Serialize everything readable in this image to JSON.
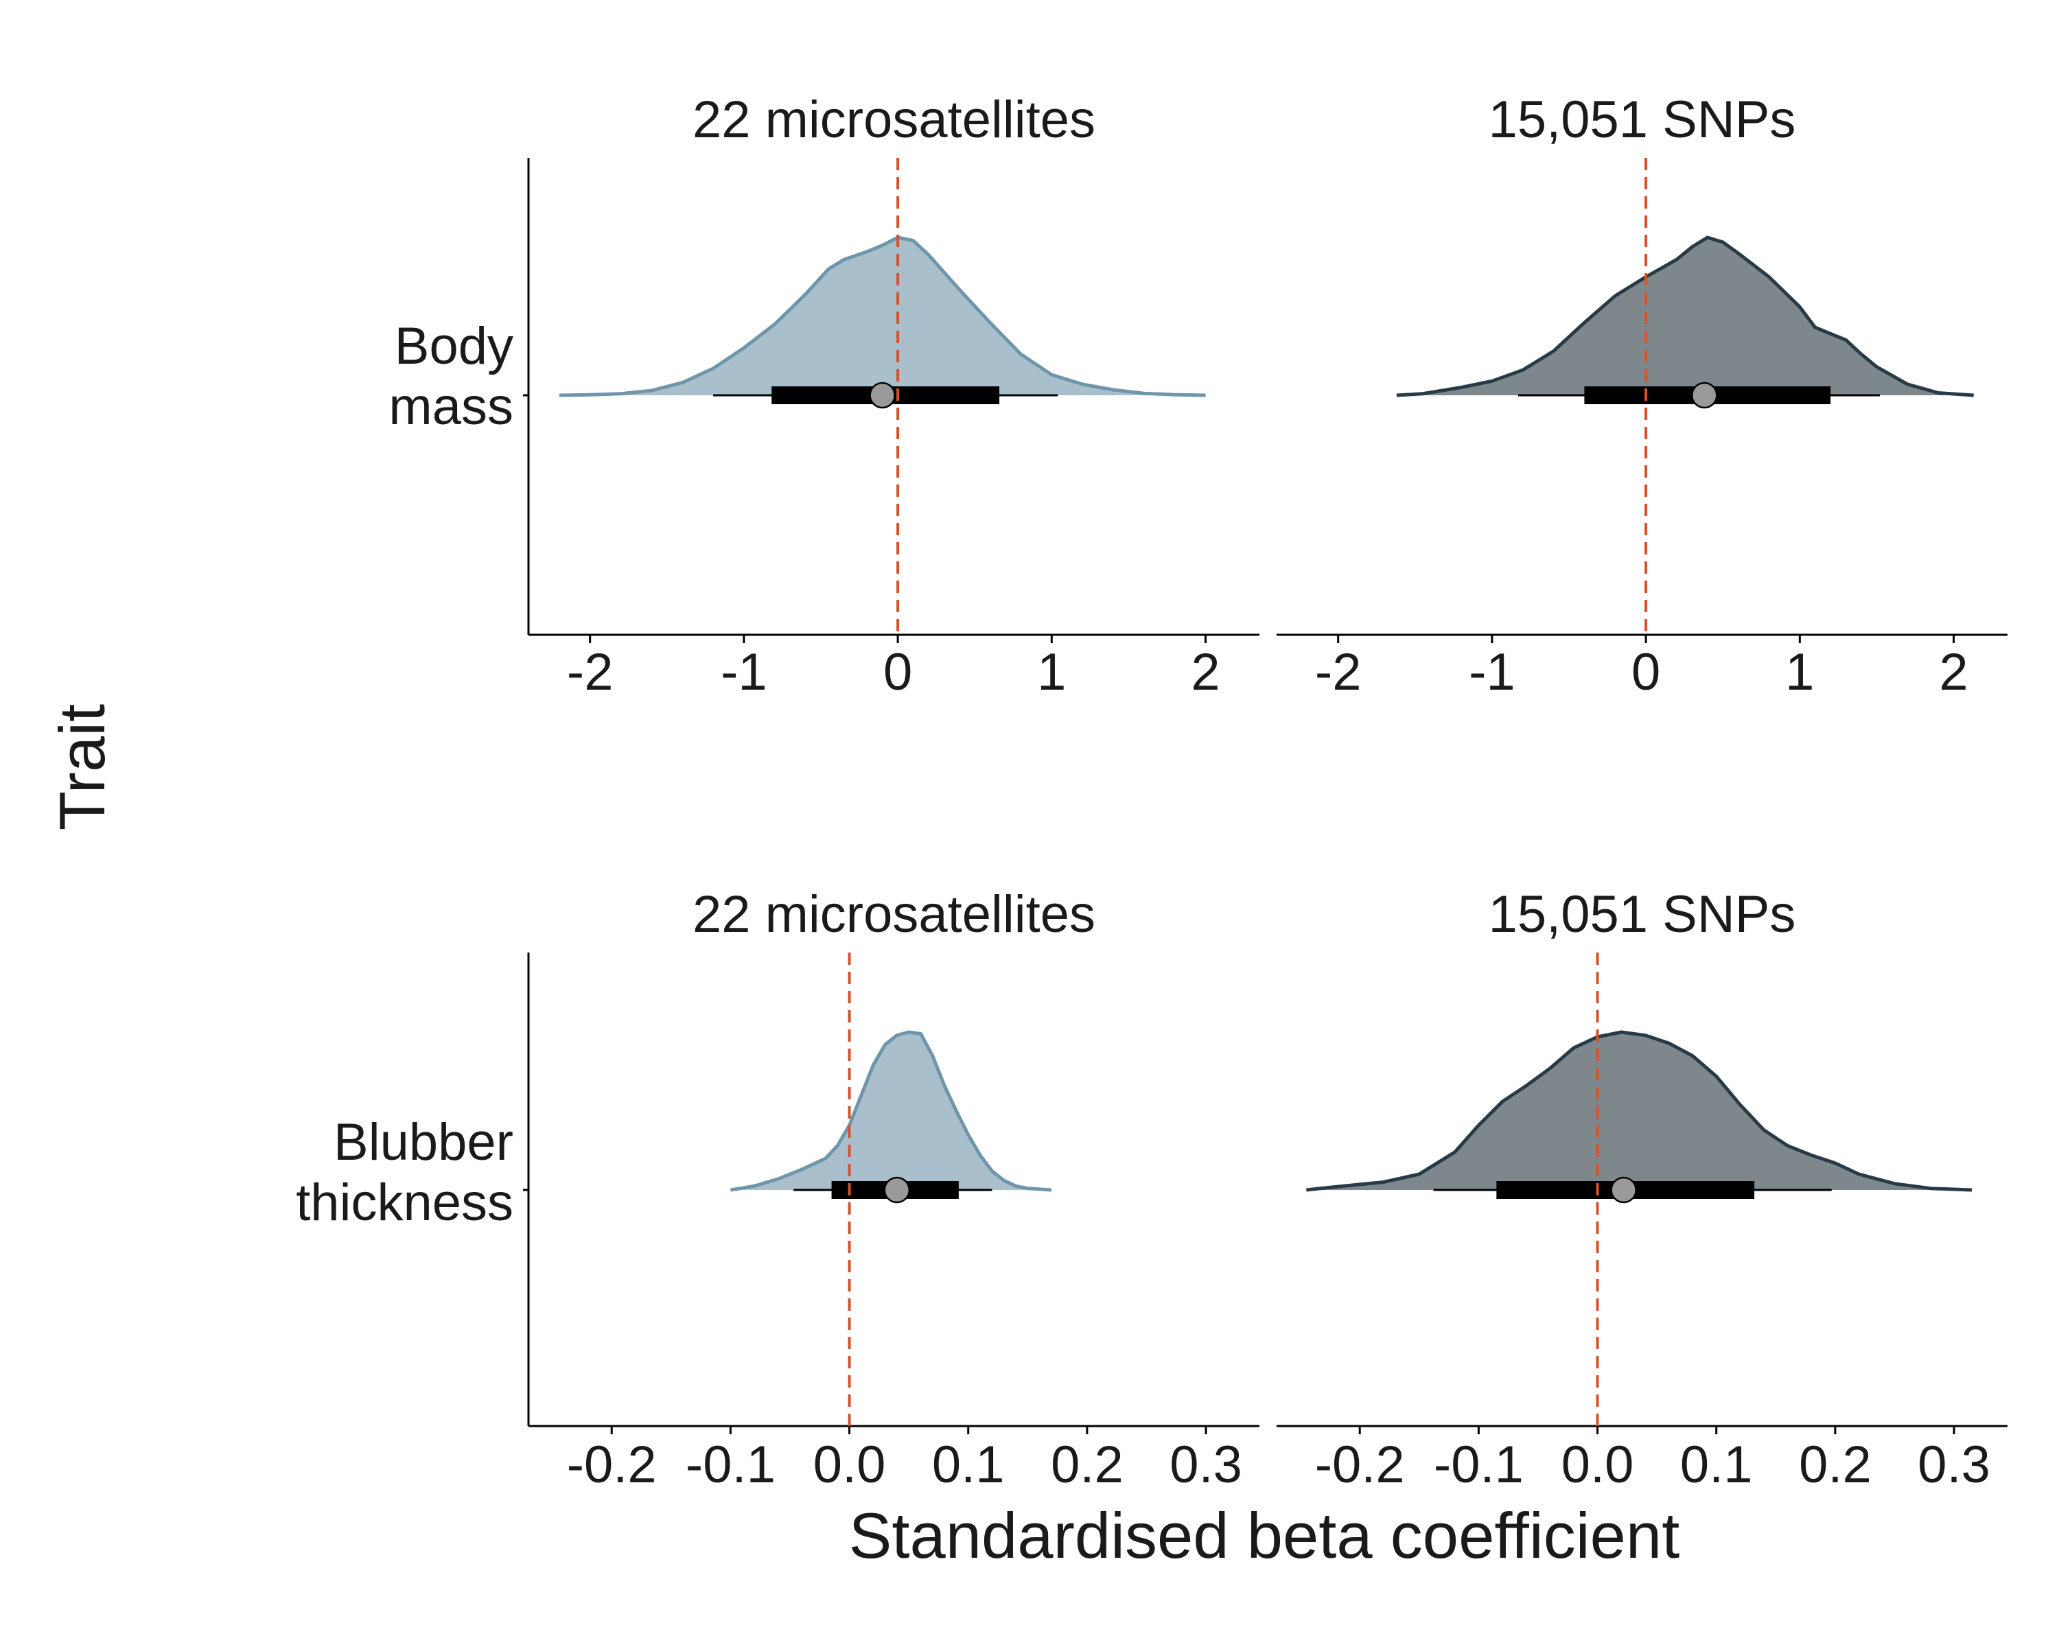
{
  "chart_data": {
    "type": "area",
    "description_type": "posterior density (half-eye) plots with median and credible intervals",
    "axis_title_x": "Standardised beta coefficient",
    "axis_title_y": "Trait",
    "reference_line": {
      "x": 0,
      "color": "#d2542a",
      "style": "dashed"
    },
    "colors": {
      "microsatellites_fill": "#a9c0cc",
      "microsatellites_line": "#6f95aa",
      "snps_fill": "#7e888c",
      "snps_line": "#283a46",
      "interval": "#000000",
      "median_point": "#9a9a9a"
    },
    "rows": [
      {
        "trait": "Body\nmass",
        "trait_lines": [
          "Body",
          "mass"
        ],
        "xlim": [
          -2.4,
          2.35
        ],
        "xticks": [
          -2,
          -1,
          0,
          1,
          2
        ],
        "xtick_labels": [
          "-2",
          "-1",
          "0",
          "1",
          "2"
        ],
        "panels": [
          {
            "name": "22 microsatellites",
            "style": "microsatellites",
            "median": -0.1,
            "ci_66": [
              -0.82,
              0.66
            ],
            "ci_95": [
              -1.2,
              1.04
            ],
            "density": [
              [
                -2.2,
                0
              ],
              [
                -2.0,
                0.003
              ],
              [
                -1.8,
                0.01
              ],
              [
                -1.6,
                0.03
              ],
              [
                -1.4,
                0.08
              ],
              [
                -1.2,
                0.17
              ],
              [
                -1.0,
                0.3
              ],
              [
                -0.8,
                0.45
              ],
              [
                -0.6,
                0.64
              ],
              [
                -0.45,
                0.8
              ],
              [
                -0.35,
                0.86
              ],
              [
                -0.2,
                0.91
              ],
              [
                -0.1,
                0.95
              ],
              [
                0.0,
                1.0
              ],
              [
                0.1,
                0.98
              ],
              [
                0.2,
                0.89
              ],
              [
                0.4,
                0.67
              ],
              [
                0.6,
                0.46
              ],
              [
                0.8,
                0.26
              ],
              [
                1.0,
                0.13
              ],
              [
                1.2,
                0.07
              ],
              [
                1.4,
                0.035
              ],
              [
                1.6,
                0.012
              ],
              [
                1.8,
                0.004
              ],
              [
                2.0,
                0
              ]
            ]
          },
          {
            "name": "15,051 SNPs",
            "style": "snps",
            "median": 0.38,
            "ci_66": [
              -0.4,
              1.2
            ],
            "ci_95": [
              -0.83,
              1.52
            ],
            "density": [
              [
                -1.62,
                0
              ],
              [
                -1.45,
                0.01
              ],
              [
                -1.2,
                0.05
              ],
              [
                -1.0,
                0.09
              ],
              [
                -0.8,
                0.16
              ],
              [
                -0.6,
                0.28
              ],
              [
                -0.4,
                0.46
              ],
              [
                -0.2,
                0.63
              ],
              [
                0.0,
                0.75
              ],
              [
                0.2,
                0.86
              ],
              [
                0.3,
                0.94
              ],
              [
                0.4,
                1.0
              ],
              [
                0.5,
                0.97
              ],
              [
                0.6,
                0.9
              ],
              [
                0.8,
                0.75
              ],
              [
                1.0,
                0.56
              ],
              [
                1.1,
                0.43
              ],
              [
                1.2,
                0.39
              ],
              [
                1.3,
                0.35
              ],
              [
                1.4,
                0.26
              ],
              [
                1.5,
                0.18
              ],
              [
                1.7,
                0.07
              ],
              [
                1.9,
                0.015
              ],
              [
                2.13,
                0
              ]
            ]
          }
        ]
      },
      {
        "trait": "Blubber\nthickness",
        "trait_lines": [
          "Blubber",
          "thickness"
        ],
        "xlim": [
          -0.27,
          0.345
        ],
        "xticks": [
          -0.2,
          -0.1,
          0.0,
          0.1,
          0.2,
          0.3
        ],
        "xtick_labels": [
          "-0.2",
          "-0.1",
          "0.0",
          "0.1",
          "0.2",
          "0.3"
        ],
        "panels": [
          {
            "name": "22 microsatellites",
            "style": "microsatellites",
            "median": 0.04,
            "ci_66": [
              -0.015,
              0.092
            ],
            "ci_95": [
              -0.047,
              0.12
            ],
            "density": [
              [
                -0.1,
                0
              ],
              [
                -0.08,
                0.025
              ],
              [
                -0.06,
                0.07
              ],
              [
                -0.04,
                0.13
              ],
              [
                -0.02,
                0.2
              ],
              [
                -0.01,
                0.28
              ],
              [
                0.0,
                0.41
              ],
              [
                0.01,
                0.6
              ],
              [
                0.02,
                0.79
              ],
              [
                0.03,
                0.92
              ],
              [
                0.04,
                0.98
              ],
              [
                0.05,
                1.0
              ],
              [
                0.06,
                0.99
              ],
              [
                0.07,
                0.85
              ],
              [
                0.08,
                0.66
              ],
              [
                0.09,
                0.5
              ],
              [
                0.1,
                0.35
              ],
              [
                0.11,
                0.22
              ],
              [
                0.12,
                0.12
              ],
              [
                0.13,
                0.06
              ],
              [
                0.14,
                0.025
              ],
              [
                0.15,
                0.01
              ],
              [
                0.17,
                0
              ]
            ]
          },
          {
            "name": "15,051 SNPs",
            "style": "snps",
            "median": 0.022,
            "ci_66": [
              -0.085,
              0.132
            ],
            "ci_95": [
              -0.138,
              0.197
            ],
            "density": [
              [
                -0.245,
                0
              ],
              [
                -0.22,
                0.02
              ],
              [
                -0.18,
                0.05
              ],
              [
                -0.15,
                0.1
              ],
              [
                -0.12,
                0.24
              ],
              [
                -0.1,
                0.41
              ],
              [
                -0.08,
                0.56
              ],
              [
                -0.06,
                0.66
              ],
              [
                -0.04,
                0.77
              ],
              [
                -0.02,
                0.9
              ],
              [
                0.0,
                0.97
              ],
              [
                0.02,
                1.0
              ],
              [
                0.04,
                0.98
              ],
              [
                0.06,
                0.93
              ],
              [
                0.08,
                0.85
              ],
              [
                0.1,
                0.72
              ],
              [
                0.12,
                0.54
              ],
              [
                0.14,
                0.38
              ],
              [
                0.16,
                0.28
              ],
              [
                0.18,
                0.22
              ],
              [
                0.2,
                0.17
              ],
              [
                0.22,
                0.1
              ],
              [
                0.25,
                0.04
              ],
              [
                0.28,
                0.01
              ],
              [
                0.315,
                0
              ]
            ]
          }
        ]
      }
    ]
  }
}
